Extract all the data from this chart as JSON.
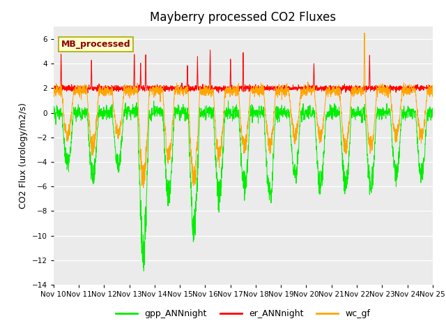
{
  "title": "Mayberry processed CO2 Fluxes",
  "ylabel": "CO2 Flux (urology/m2/s)",
  "ylim": [
    -14,
    7
  ],
  "yticks": [
    -14,
    -12,
    -10,
    -8,
    -6,
    -4,
    -2,
    0,
    2,
    4,
    6
  ],
  "xtick_labels": [
    "Nov 10",
    "Nov 11",
    "Nov 12",
    "Nov 13",
    "Nov 14",
    "Nov 15",
    "Nov 16",
    "Nov 17",
    "Nov 18",
    "Nov 19",
    "Nov 20",
    "Nov 21",
    "Nov 22",
    "Nov 23",
    "Nov 24",
    "Nov 25"
  ],
  "legend_label": "MB_processed",
  "legend_text_color": "#8B0000",
  "legend_box_facecolor": "#FFFFCC",
  "legend_box_edgecolor": "#AAAA00",
  "fig_bg_color": "#FFFFFF",
  "plot_bg_color": "#EBEBEB",
  "gpp_color": "#00EE00",
  "er_color": "#FF0000",
  "wc_color": "#FFA500",
  "gpp_label": "gpp_ANNnight",
  "er_label": "er_ANNnight",
  "wc_label": "wc_gf",
  "title_fontsize": 12,
  "axis_fontsize": 9,
  "tick_fontsize": 7.5,
  "legend_fontsize": 9,
  "linewidth": 0.7,
  "n_points": 2160,
  "days": 15
}
